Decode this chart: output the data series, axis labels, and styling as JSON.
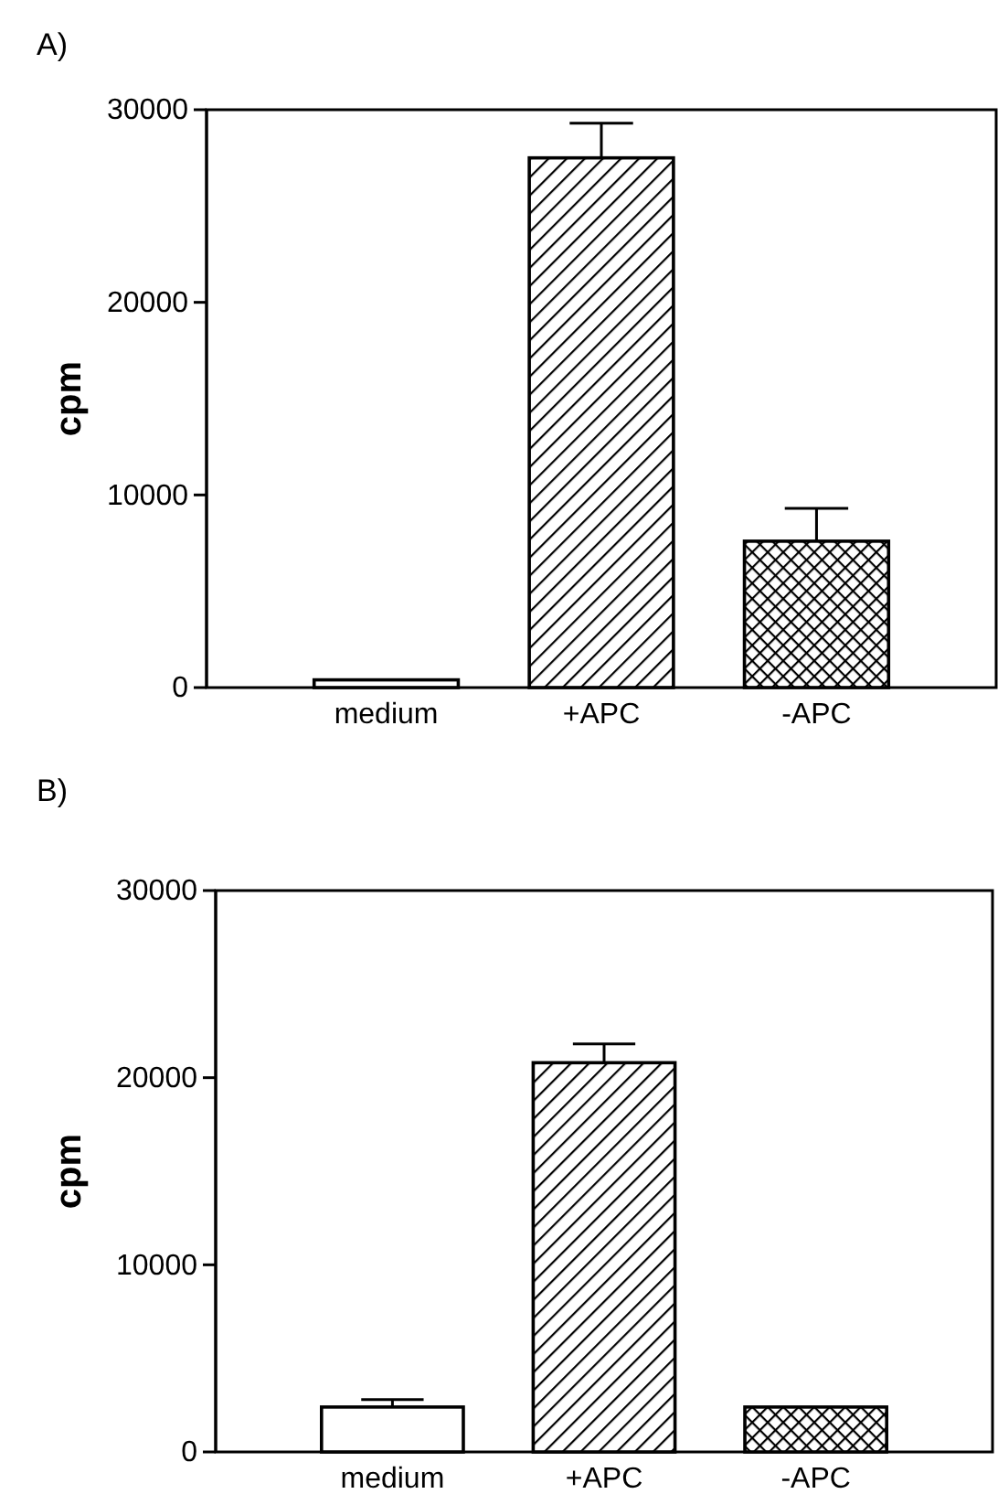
{
  "chart_data": [
    {
      "type": "bar",
      "title": "A)",
      "ylabel": "cpm",
      "categories": [
        "medium",
        "+APC",
        "-APC"
      ],
      "values": [
        400,
        27500,
        7600
      ],
      "errors": [
        null,
        [
          27500,
          29300
        ],
        [
          7600,
          9300
        ]
      ],
      "colors": [
        "#ffffff",
        "#000000",
        "#000000"
      ],
      "ylim": [
        0,
        30000
      ],
      "yticks": [
        0,
        10000,
        20000,
        30000
      ],
      "grid": false
    },
    {
      "type": "bar",
      "title": "B)",
      "ylabel": "cpm",
      "categories": [
        "medium",
        "+APC",
        "-APC"
      ],
      "values": [
        2400,
        20800,
        2400
      ],
      "errors": [
        [
          2400,
          2800
        ],
        [
          20800,
          21800
        ],
        null
      ],
      "colors": [
        "#ffffff",
        "#000000",
        "#000000"
      ],
      "ylim": [
        0,
        30000
      ],
      "yticks": [
        0,
        10000,
        20000,
        30000
      ],
      "grid": false
    }
  ]
}
